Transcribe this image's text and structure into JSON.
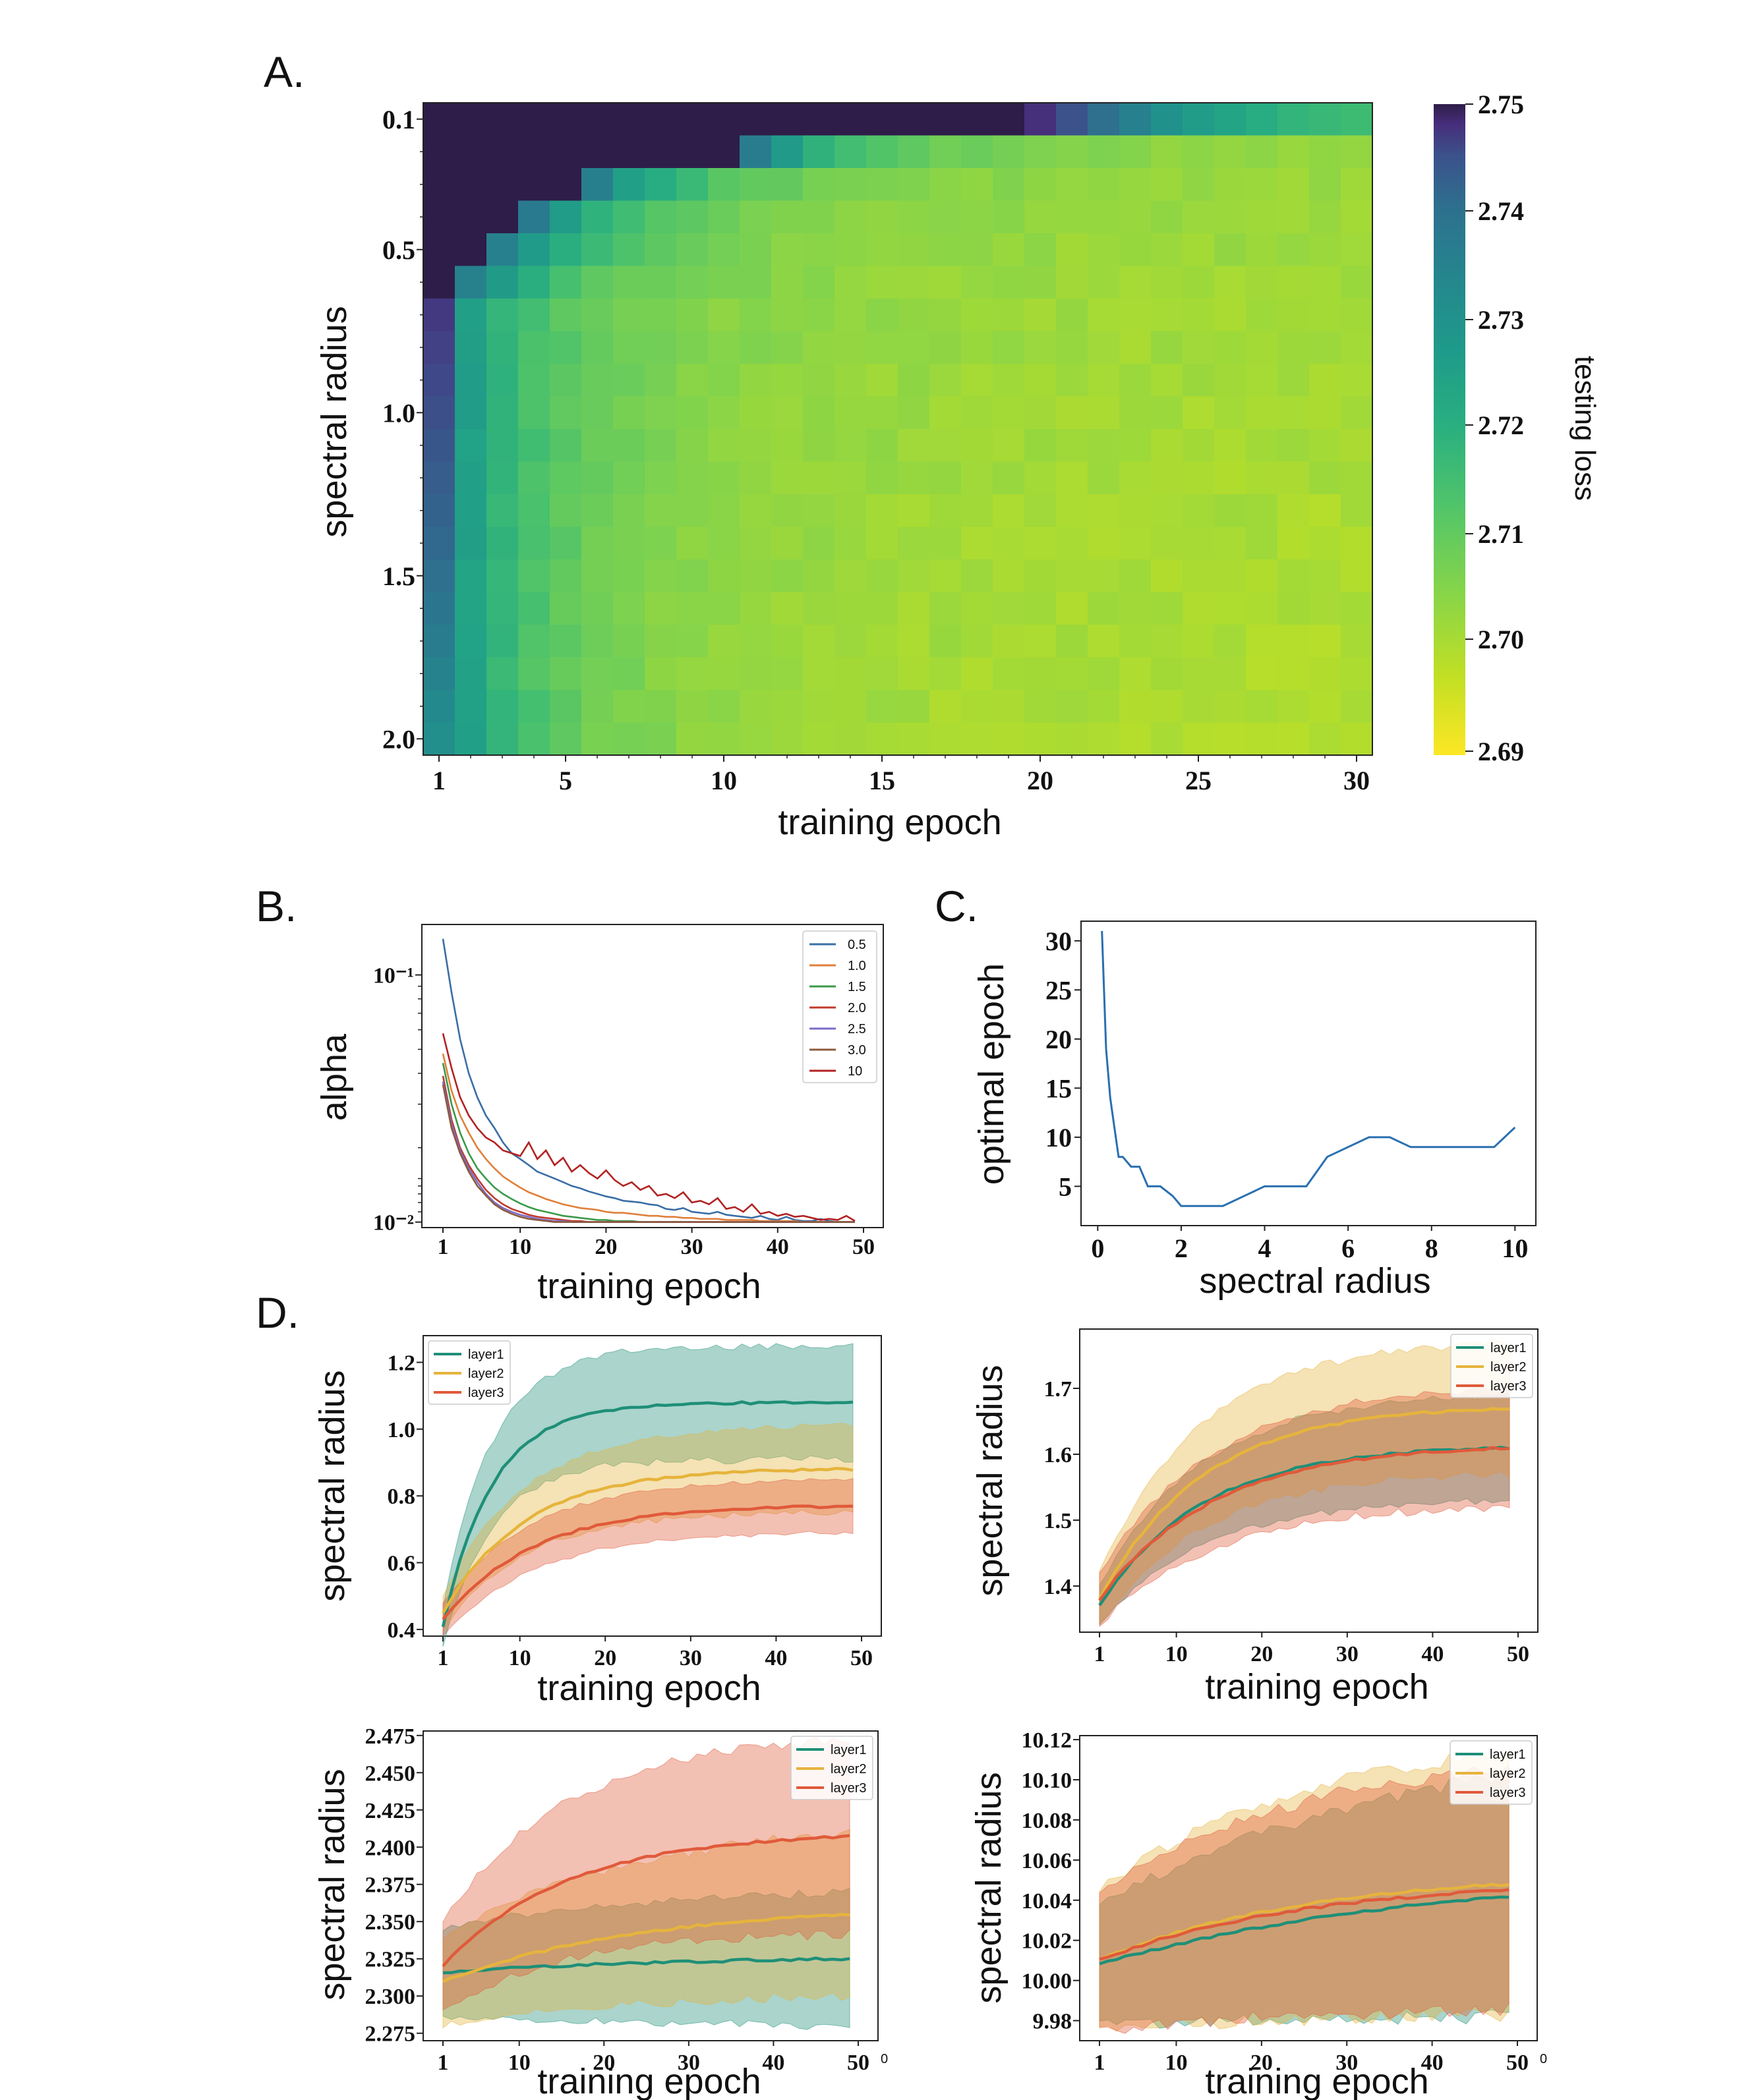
{
  "panels": {
    "a": "A.",
    "b": "B.",
    "c": "C.",
    "d": "D."
  },
  "chart_data": [
    {
      "id": "A",
      "type": "heatmap",
      "xlabel": "training epoch",
      "ylabel": "spectral radius",
      "colorbar_label": "testing loss",
      "colormap": "viridis",
      "x_range": [
        1,
        30
      ],
      "y_range": [
        0.1,
        2.0
      ],
      "x_ticks": [
        "1",
        "5",
        "10",
        "15",
        "20",
        "25",
        "30"
      ],
      "y_ticks": [
        "0.1",
        "0.5",
        "1.0",
        "1.5",
        "2.0"
      ],
      "colorbar_ticks": [
        "2.75",
        "2.74",
        "2.73",
        "2.72",
        "2.71",
        "2.70",
        "2.69"
      ],
      "value_range": [
        2.69,
        2.75
      ],
      "description_values": "loss ≥2.75 for small spectral radius and early epochs; decreasing toward ~2.695 for larger radius and later epochs",
      "rows": [
        {
          "radius": 0.1,
          "dark_until_epoch": 19,
          "tail": [
            2.742,
            2.735,
            2.728,
            2.724,
            2.72,
            2.717,
            2.715,
            2.713,
            2.711,
            2.71,
            2.709
          ]
        },
        {
          "radius": 0.2,
          "dark_until_epoch": 10
        },
        {
          "radius": 0.3,
          "dark_until_epoch": 5
        },
        {
          "radius": 0.4,
          "dark_until_epoch": 3
        },
        {
          "radius": 0.5,
          "dark_until_epoch": 2
        },
        {
          "radius": 0.6,
          "dark_until_epoch": 1
        }
      ]
    },
    {
      "id": "B",
      "type": "line",
      "xlabel": "training epoch",
      "ylabel": "alpha",
      "yscale": "log",
      "xlim": [
        1,
        50
      ],
      "ylim": [
        0.0095,
        0.16
      ],
      "x_ticks": [
        "1",
        "10",
        "20",
        "30",
        "40",
        "50"
      ],
      "y_ticks": [
        "10⁻¹",
        "10⁻²"
      ],
      "legend": "top-right",
      "series": [
        {
          "name": "0.5",
          "color": "#3a6ea5",
          "values": [
            0.14,
            0.085,
            0.055,
            0.04,
            0.032,
            0.027,
            0.024,
            0.021,
            0.019,
            0.018,
            0.017,
            0.016,
            0.0155,
            0.015,
            0.0145,
            0.014,
            0.0137,
            0.0133,
            0.013,
            0.0127,
            0.0125,
            0.0122,
            0.0121,
            0.012,
            0.0118,
            0.0117,
            0.0113,
            0.0112,
            0.0114,
            0.011,
            0.0109,
            0.0108,
            0.011,
            0.0107,
            0.0106,
            0.0105,
            0.0104,
            0.0106,
            0.0103,
            0.0102,
            0.0105,
            0.0102,
            0.0101,
            0.0101,
            0.0103,
            0.0101,
            0.01,
            0.01,
            0.01
          ]
        },
        {
          "name": "1.0",
          "color": "#e0803a",
          "values": [
            0.048,
            0.034,
            0.027,
            0.023,
            0.02,
            0.018,
            0.0165,
            0.0153,
            0.0145,
            0.0138,
            0.0132,
            0.0128,
            0.0124,
            0.0121,
            0.0118,
            0.0116,
            0.0114,
            0.0113,
            0.0112,
            0.011,
            0.0109,
            0.0109,
            0.0108,
            0.0107,
            0.0106,
            0.0106,
            0.0105,
            0.0105,
            0.0104,
            0.0104,
            0.0103,
            0.0103,
            0.0103,
            0.0102,
            0.0102,
            0.0102,
            0.0102,
            0.0101,
            0.0101,
            0.0101,
            0.0101,
            0.0101,
            0.01,
            0.01,
            0.01,
            0.01,
            0.01,
            0.01,
            0.01
          ]
        },
        {
          "name": "1.5",
          "color": "#3a9a4a",
          "values": [
            0.044,
            0.03,
            0.023,
            0.019,
            0.0165,
            0.015,
            0.0138,
            0.013,
            0.0124,
            0.0119,
            0.0115,
            0.0112,
            0.011,
            0.0108,
            0.0106,
            0.0105,
            0.0104,
            0.0103,
            0.0102,
            0.0102,
            0.0101,
            0.0101,
            0.0101,
            0.01,
            0.01,
            0.01,
            0.01,
            0.01,
            0.01,
            0.01,
            0.01,
            0.01,
            0.01,
            0.01,
            0.01,
            0.01,
            0.01,
            0.01,
            0.01,
            0.01,
            0.01,
            0.01,
            0.01,
            0.01,
            0.01,
            0.01,
            0.01,
            0.01,
            0.01
          ]
        },
        {
          "name": "2.0",
          "color": "#c0392b",
          "values": [
            0.039,
            0.026,
            0.02,
            0.017,
            0.015,
            0.0135,
            0.0125,
            0.0118,
            0.0113,
            0.011,
            0.0107,
            0.0105,
            0.0104,
            0.0103,
            0.0102,
            0.0101,
            0.0101,
            0.01,
            0.01,
            0.01,
            0.01,
            0.01,
            0.01,
            0.01,
            0.01,
            0.01,
            0.01,
            0.01,
            0.01,
            0.01,
            0.01,
            0.01,
            0.01,
            0.01,
            0.01,
            0.01,
            0.01,
            0.01,
            0.01,
            0.01,
            0.01,
            0.01,
            0.01,
            0.01,
            0.01,
            0.01,
            0.01,
            0.01,
            0.01
          ]
        },
        {
          "name": "2.5",
          "color": "#7b6cc8",
          "values": [
            0.037,
            0.025,
            0.0195,
            0.0165,
            0.0145,
            0.013,
            0.012,
            0.0114,
            0.011,
            0.0107,
            0.0105,
            0.0103,
            0.0102,
            0.0101,
            0.0101,
            0.01,
            0.01,
            0.01,
            0.01,
            0.01,
            0.01,
            0.01,
            0.01,
            0.01,
            0.01,
            0.01,
            0.01,
            0.01,
            0.01,
            0.01,
            0.01,
            0.01,
            0.01,
            0.01,
            0.01,
            0.01,
            0.01,
            0.01,
            0.01,
            0.01,
            0.01,
            0.01,
            0.01,
            0.01,
            0.01,
            0.01,
            0.01,
            0.01,
            0.01
          ]
        },
        {
          "name": "3.0",
          "color": "#8c5a3c",
          "values": [
            0.036,
            0.024,
            0.019,
            0.016,
            0.014,
            0.0128,
            0.0118,
            0.0112,
            0.0108,
            0.0105,
            0.0103,
            0.0102,
            0.0101,
            0.01,
            0.01,
            0.01,
            0.01,
            0.01,
            0.01,
            0.01,
            0.01,
            0.01,
            0.01,
            0.01,
            0.01,
            0.01,
            0.01,
            0.01,
            0.01,
            0.01,
            0.01,
            0.01,
            0.01,
            0.01,
            0.01,
            0.01,
            0.01,
            0.01,
            0.01,
            0.01,
            0.01,
            0.01,
            0.01,
            0.01,
            0.01,
            0.01,
            0.01,
            0.01,
            0.01
          ]
        },
        {
          "name": "10",
          "color": "#b22222",
          "values": [
            0.058,
            0.042,
            0.032,
            0.027,
            0.024,
            0.022,
            0.021,
            0.0195,
            0.019,
            0.0185,
            0.021,
            0.018,
            0.0195,
            0.017,
            0.0182,
            0.016,
            0.017,
            0.0158,
            0.015,
            0.0162,
            0.0148,
            0.014,
            0.0145,
            0.0135,
            0.014,
            0.0128,
            0.013,
            0.0125,
            0.0132,
            0.012,
            0.0122,
            0.0118,
            0.0125,
            0.0113,
            0.0115,
            0.011,
            0.0118,
            0.0108,
            0.011,
            0.0106,
            0.0108,
            0.0105,
            0.0106,
            0.0104,
            0.0102,
            0.0103,
            0.0102,
            0.0106,
            0.0101
          ]
        }
      ]
    },
    {
      "id": "C",
      "type": "line",
      "xlabel": "spectral radius",
      "ylabel": "optimal epoch",
      "xlim": [
        -0.4,
        10.5
      ],
      "ylim": [
        1,
        32
      ],
      "x_ticks": [
        "0",
        "2",
        "4",
        "6",
        "8",
        "10"
      ],
      "y_ticks": [
        "5",
        "10",
        "15",
        "20",
        "25",
        "30"
      ],
      "series": [
        {
          "color": "#2a6fb0",
          "x": [
            0.1,
            0.2,
            0.3,
            0.4,
            0.5,
            0.6,
            0.8,
            1.0,
            1.2,
            1.5,
            1.8,
            2.0,
            2.5,
            3.0,
            3.5,
            4.0,
            4.5,
            5.0,
            5.5,
            6.0,
            6.5,
            7.0,
            7.5,
            8.0,
            8.5,
            9.0,
            9.5,
            10.0
          ],
          "y": [
            31,
            19,
            14,
            11,
            8,
            8,
            7,
            7,
            5,
            5,
            4,
            3,
            3,
            3,
            4,
            5,
            5,
            5,
            8,
            9,
            10,
            10,
            9,
            9,
            9,
            9,
            9,
            11
          ]
        }
      ]
    },
    {
      "id": "D1",
      "type": "line",
      "xlabel": "training epoch",
      "ylabel": "spectral radius",
      "xlim": [
        0,
        50
      ],
      "ylim": [
        0.38,
        1.28
      ],
      "x_ticks": [
        "1",
        "10",
        "20",
        "30",
        "40",
        "50"
      ],
      "y_ticks": [
        "0.4",
        "0.6",
        "0.8",
        "1.0",
        "1.2"
      ],
      "legend": "top-left",
      "series": [
        {
          "name": "layer1",
          "color": "#1f8f78",
          "mean_start": 0.41,
          "mean_end": 1.08,
          "band_start": 0.06,
          "band_end": 0.17,
          "shape": 0.12
        },
        {
          "name": "layer2",
          "color": "#e6b43c",
          "mean_start": 0.45,
          "mean_end": 0.88,
          "band_start": 0.05,
          "band_end": 0.13,
          "shape": 0.2
        },
        {
          "name": "layer3",
          "color": "#e05a3a",
          "mean_start": 0.43,
          "mean_end": 0.77,
          "band_start": 0.05,
          "band_end": 0.08,
          "shape": 0.22
        }
      ]
    },
    {
      "id": "D2",
      "type": "line",
      "xlabel": "training epoch",
      "ylabel": "spectral radius",
      "xlim": [
        0,
        50
      ],
      "ylim": [
        1.33,
        1.79
      ],
      "x_ticks": [
        "1",
        "10",
        "20",
        "30",
        "40",
        "50"
      ],
      "y_ticks": [
        "1.4",
        "1.5",
        "1.6",
        "1.7"
      ],
      "legend": "top-right",
      "series": [
        {
          "name": "layer1",
          "color": "#1f8f78",
          "mean_start": 1.37,
          "mean_end": 1.61,
          "band_start": 0.03,
          "band_end": 0.08,
          "shape": 0.25
        },
        {
          "name": "layer2",
          "color": "#e6b43c",
          "mean_start": 1.38,
          "mean_end": 1.67,
          "band_start": 0.04,
          "band_end": 0.1,
          "shape": 0.25
        },
        {
          "name": "layer3",
          "color": "#e05a3a",
          "mean_start": 1.38,
          "mean_end": 1.61,
          "band_start": 0.04,
          "band_end": 0.09,
          "shape": 0.28
        }
      ]
    },
    {
      "id": "D3",
      "type": "line",
      "xlabel": "training epoch",
      "ylabel": "spectral radius",
      "xlim": [
        0,
        50
      ],
      "ylim": [
        2.27,
        2.478
      ],
      "x_ticks": [
        "1",
        "10",
        "20",
        "30",
        "40",
        "50"
      ],
      "x_offset_label": "0",
      "y_ticks": [
        "2.275",
        "2.300",
        "2.325",
        "2.350",
        "2.375",
        "2.400",
        "2.425",
        "2.450",
        "2.475"
      ],
      "legend": "top-right",
      "series": [
        {
          "name": "layer1",
          "color": "#1f8f78",
          "mean_start": 2.316,
          "mean_end": 2.325,
          "band_start": 0.03,
          "band_end": 0.045,
          "shape": 0.6
        },
        {
          "name": "layer2",
          "color": "#e6b43c",
          "mean_start": 2.31,
          "mean_end": 2.355,
          "band_start": 0.03,
          "band_end": 0.055,
          "shape": 0.5
        },
        {
          "name": "layer3",
          "color": "#e05a3a",
          "mean_start": 2.32,
          "mean_end": 2.407,
          "band_start": 0.03,
          "band_end": 0.065,
          "shape": 0.3
        }
      ]
    },
    {
      "id": "D4",
      "type": "line",
      "xlabel": "training epoch",
      "ylabel": "spectral radius",
      "xlim": [
        0,
        50
      ],
      "ylim": [
        9.97,
        10.122
      ],
      "x_ticks": [
        "1",
        "10",
        "20",
        "30",
        "40",
        "50"
      ],
      "x_offset_label": "0",
      "y_ticks": [
        "9.98",
        "10.00",
        "10.02",
        "10.04",
        "10.06",
        "10.08",
        "10.10",
        "10.12"
      ],
      "legend": "top-right",
      "series": [
        {
          "name": "layer1",
          "color": "#1f8f78",
          "mean_start": 10.008,
          "mean_end": 10.042,
          "band_start": 0.03,
          "band_end": 0.06,
          "shape": 0.8
        },
        {
          "name": "layer2",
          "color": "#e6b43c",
          "mean_start": 10.01,
          "mean_end": 10.048,
          "band_start": 0.035,
          "band_end": 0.065,
          "shape": 0.5
        },
        {
          "name": "layer3",
          "color": "#e05a3a",
          "mean_start": 10.01,
          "mean_end": 10.045,
          "band_start": 0.035,
          "band_end": 0.06,
          "shape": 0.5
        }
      ]
    }
  ]
}
